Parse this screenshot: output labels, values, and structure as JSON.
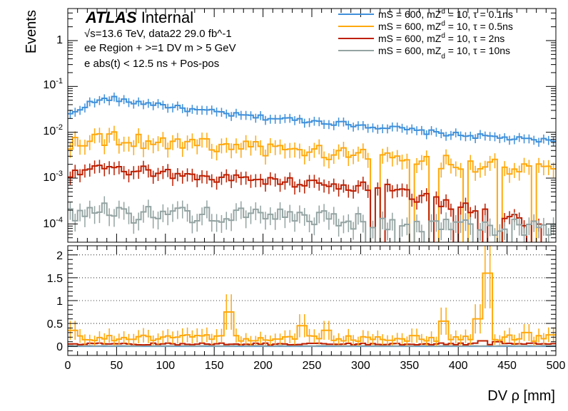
{
  "chart_data": [
    {
      "type": "line",
      "panel": "main",
      "yscale": "log",
      "ylabel": "Events",
      "xlim": [
        0,
        500
      ],
      "ylim": [
        4e-05,
        5
      ],
      "ytick_labels": [
        "10^{-4}",
        "10^{-3}",
        "10^{-2}",
        "10^{-1}",
        "1"
      ],
      "ytick_values": [
        0.0001,
        0.001,
        0.01,
        0.1,
        1
      ],
      "atlas": {
        "brand": "ATLAS",
        "status": "Internal"
      },
      "annotations": [
        "√s=13.6 TeV, data22 29.0 fb^-1",
        "ee Region + >=1 DV m > 5 GeV",
        "e abs(t) < 12.5 ns + Pos-pos"
      ],
      "bin_edges_description": "100 bins of 5 mm from 0 to 500",
      "series": [
        {
          "name": "mS = 600, mZd = 10, τ = 0.1ns",
          "legend": {
            "pre": "mS = 600, mZ",
            "sub": "d",
            "post": " = 10, τ = 0.1ns"
          },
          "color": "#3f90da",
          "profile": [
            [
              0,
              0.022
            ],
            [
              10,
              0.03
            ],
            [
              20,
              0.042
            ],
            [
              35,
              0.05
            ],
            [
              45,
              0.057
            ],
            [
              55,
              0.048
            ],
            [
              70,
              0.045
            ],
            [
              90,
              0.042
            ],
            [
              110,
              0.035
            ],
            [
              130,
              0.03
            ],
            [
              150,
              0.028
            ],
            [
              170,
              0.024
            ],
            [
              200,
              0.021
            ],
            [
              230,
              0.019
            ],
            [
              260,
              0.017
            ],
            [
              290,
              0.015
            ],
            [
              320,
              0.013
            ],
            [
              340,
              0.012
            ],
            [
              360,
              0.0105
            ],
            [
              400,
              0.0088
            ],
            [
              440,
              0.0078
            ],
            [
              470,
              0.0068
            ],
            [
              500,
              0.0065
            ]
          ]
        },
        {
          "name": "mS = 600, mZd = 10, τ = 0.5ns",
          "legend": {
            "pre": "mS = 600, mZ",
            "sub": "d",
            "post": " = 10, τ = 0.5ns"
          },
          "color": "#ffa90e",
          "profile": [
            [
              0,
              0.006
            ],
            [
              20,
              0.008
            ],
            [
              50,
              0.0075
            ],
            [
              80,
              0.0068
            ],
            [
              110,
              0.0062
            ],
            [
              140,
              0.0055
            ],
            [
              170,
              0.0052
            ],
            [
              200,
              0.0045
            ],
            [
              230,
              0.0042
            ],
            [
              260,
              0.0038
            ],
            [
              290,
              0.0034
            ],
            [
              320,
              0.0031
            ],
            [
              350,
              0.0028
            ],
            [
              380,
              0.0024
            ],
            [
              410,
              0.0021
            ],
            [
              440,
              0.0019
            ],
            [
              470,
              0.0016
            ],
            [
              500,
              0.0015
            ]
          ]
        },
        {
          "name": "mS = 600, mZd = 10, τ = 2ns",
          "legend": {
            "pre": "mS = 600, mZ",
            "sub": "d",
            "post": " = 10, τ = 2ns"
          },
          "color": "#bd1f01",
          "profile": [
            [
              0,
              0.0011
            ],
            [
              20,
              0.0014
            ],
            [
              40,
              0.0016
            ],
            [
              60,
              0.0015
            ],
            [
              90,
              0.0014
            ],
            [
              120,
              0.0012
            ],
            [
              150,
              0.00105
            ],
            [
              180,
              0.00095
            ],
            [
              210,
              0.0009
            ],
            [
              240,
              0.0008
            ],
            [
              270,
              0.00075
            ],
            [
              300,
              0.00065
            ],
            [
              330,
              0.0006
            ],
            [
              360,
              0.0004
            ],
            [
              400,
              0.00025
            ],
            [
              440,
              0.00015
            ],
            [
              500,
              0.0001
            ]
          ]
        },
        {
          "name": "mS = 600, mZd = 10, τ = 10ns",
          "legend": {
            "pre": "mS = 600, mZ",
            "sub": "d",
            "post": " = 10, τ = 10ns"
          },
          "color": "#94a4a2",
          "profile": [
            [
              0,
              0.00018
            ],
            [
              30,
              0.0002
            ],
            [
              60,
              0.00019
            ],
            [
              100,
              0.00018
            ],
            [
              150,
              0.00016
            ],
            [
              200,
              0.00015
            ],
            [
              250,
              0.00014
            ],
            [
              300,
              0.00012
            ],
            [
              350,
              0.0001
            ],
            [
              400,
              0.0001
            ],
            [
              450,
              9e-05
            ],
            [
              500,
              8e-05
            ]
          ]
        }
      ]
    },
    {
      "type": "line",
      "panel": "ratio",
      "xlabel": "DV ρ [mm]",
      "xlim": [
        0,
        500
      ],
      "ylim": [
        -0.2,
        2.2
      ],
      "xticks": [
        0,
        50,
        100,
        150,
        200,
        250,
        300,
        350,
        400,
        450,
        500
      ],
      "yticks": [
        0,
        0.5,
        1,
        1.5,
        2
      ],
      "ytick_labels": [
        "0",
        "0.5",
        "1",
        "1.5",
        "2"
      ],
      "series": [
        {
          "name": "τ = 0.5ns ratio",
          "color": "#ffa90e",
          "level": 0.18,
          "spikes": [
            [
              5,
              0.35
            ],
            [
              165,
              0.75
            ],
            [
              240,
              0.45
            ],
            [
              265,
              0.35
            ],
            [
              385,
              0.55
            ],
            [
              420,
              0.6
            ],
            [
              430,
              1.6
            ],
            [
              470,
              0.3
            ],
            [
              495,
              0.25
            ]
          ]
        },
        {
          "name": "τ = 2ns ratio",
          "color": "#bd1f01",
          "level": 0.05,
          "spikes": [
            [
              425,
              0.12
            ],
            [
              440,
              0.1
            ]
          ]
        },
        {
          "name": "τ = 10ns ratio",
          "color": "#94a4a2",
          "level": 0.01,
          "spikes": []
        },
        {
          "name": "τ = 0.1ns ratio",
          "color": "#3f90da",
          "level": 0.0,
          "spikes": []
        }
      ]
    }
  ]
}
